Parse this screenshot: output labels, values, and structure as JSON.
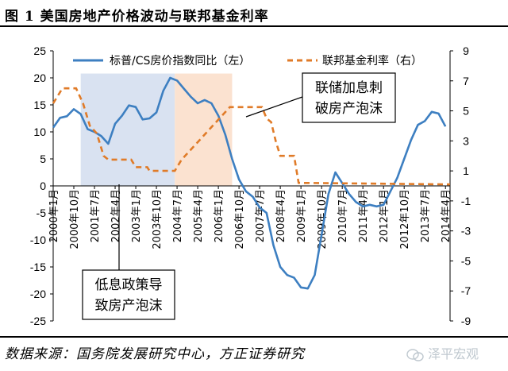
{
  "figure": {
    "title": "图 1    美国房地产价格波动与联邦基金利率",
    "source": "数据来源：国务院发展研究中心，方正证券研究",
    "watermark": "泽平宏观"
  },
  "annotations": {
    "low_rate": "低息政策导\n致房产泡沫",
    "hike": "联储加息刺\n破房产泡沫"
  },
  "colors": {
    "hpi": "#3d7fc1",
    "ffr": "#e07b28",
    "shade_blue": "#d9e2f1",
    "shade_orange": "#fbe2d0"
  },
  "chart_data": {
    "type": "line",
    "title": "",
    "x_ticks": [
      "2000年1月",
      "2000年10月",
      "2001年7月",
      "2002年4月",
      "2003年1月",
      "2003年10月",
      "2004年7月",
      "2005年4月",
      "2006年1月",
      "2006年10月",
      "2007年7月",
      "2008年4月",
      "2009年1月",
      "2009年10月",
      "2010年7月",
      "2011年4月",
      "2012年1月",
      "2012年10月",
      "2013年7月",
      "2014年4月"
    ],
    "y_left": {
      "range": [
        -25,
        25
      ],
      "ticks": [
        25,
        20,
        15,
        10,
        5,
        0,
        -5,
        -10,
        -15,
        -20,
        -25
      ]
    },
    "y_right": {
      "range": [
        -9,
        9
      ],
      "ticks": [
        9,
        7,
        5,
        3,
        1,
        -1,
        -3,
        -5,
        -7,
        -9
      ]
    },
    "shaded_regions": [
      {
        "from": "2001-01",
        "to": "2004-06",
        "color": "blue"
      },
      {
        "from": "2004-06",
        "to": "2006-07",
        "color": "orange"
      }
    ],
    "series": [
      {
        "name": "标普/CS房价指数同比（左）",
        "axis": "left",
        "style": "solid",
        "points": [
          [
            "2000-01",
            10.8
          ],
          [
            "2000-04",
            12.6
          ],
          [
            "2000-07",
            12.9
          ],
          [
            "2000-10",
            14.2
          ],
          [
            "2001-01",
            13.3
          ],
          [
            "2001-04",
            10.5
          ],
          [
            "2001-07",
            10.0
          ],
          [
            "2001-10",
            9.2
          ],
          [
            "2002-01",
            7.8
          ],
          [
            "2002-04",
            11.5
          ],
          [
            "2002-07",
            13.0
          ],
          [
            "2002-10",
            14.9
          ],
          [
            "2003-01",
            14.6
          ],
          [
            "2003-04",
            12.3
          ],
          [
            "2003-07",
            12.5
          ],
          [
            "2003-10",
            13.6
          ],
          [
            "2004-01",
            17.6
          ],
          [
            "2004-04",
            20.0
          ],
          [
            "2004-07",
            19.5
          ],
          [
            "2004-10",
            18.0
          ],
          [
            "2005-01",
            16.5
          ],
          [
            "2005-04",
            15.3
          ],
          [
            "2005-07",
            15.9
          ],
          [
            "2005-10",
            15.3
          ],
          [
            "2006-01",
            13.0
          ],
          [
            "2006-04",
            9.5
          ],
          [
            "2006-07",
            5.0
          ],
          [
            "2006-10",
            1.2
          ],
          [
            "2007-01",
            -1.0
          ],
          [
            "2007-04",
            -2.0
          ],
          [
            "2007-07",
            -4.0
          ],
          [
            "2007-10",
            -5.0
          ],
          [
            "2008-01",
            -11.0
          ],
          [
            "2008-04",
            -15.0
          ],
          [
            "2008-07",
            -16.5
          ],
          [
            "2008-10",
            -17.0
          ],
          [
            "2009-01",
            -18.8
          ],
          [
            "2009-04",
            -19.0
          ],
          [
            "2009-07",
            -16.5
          ],
          [
            "2009-10",
            -9.0
          ],
          [
            "2010-01",
            -1.5
          ],
          [
            "2010-04",
            2.5
          ],
          [
            "2010-07",
            0.5
          ],
          [
            "2010-10",
            -1.5
          ],
          [
            "2011-01",
            -3.0
          ],
          [
            "2011-04",
            -3.8
          ],
          [
            "2011-07",
            -3.5
          ],
          [
            "2011-10",
            -3.8
          ],
          [
            "2012-01",
            -3.5
          ],
          [
            "2012-04",
            -1.0
          ],
          [
            "2012-07",
            1.5
          ],
          [
            "2012-10",
            5.0
          ],
          [
            "2013-01",
            8.5
          ],
          [
            "2013-04",
            11.3
          ],
          [
            "2013-07",
            12.0
          ],
          [
            "2013-10",
            13.7
          ],
          [
            "2014-01",
            13.4
          ],
          [
            "2014-04",
            11.0
          ]
        ]
      },
      {
        "name": "联邦基金利率（右）",
        "axis": "right",
        "style": "dashed",
        "points": [
          [
            "2000-01",
            5.5
          ],
          [
            "2000-05",
            6.5
          ],
          [
            "2000-11",
            6.5
          ],
          [
            "2001-02",
            5.5
          ],
          [
            "2001-05",
            4.0
          ],
          [
            "2001-08",
            3.5
          ],
          [
            "2001-11",
            2.0
          ],
          [
            "2002-01",
            1.75
          ],
          [
            "2002-06",
            1.75
          ],
          [
            "2002-11",
            1.75
          ],
          [
            "2003-01",
            1.25
          ],
          [
            "2003-06",
            1.25
          ],
          [
            "2003-07",
            1.0
          ],
          [
            "2004-06",
            1.0
          ],
          [
            "2004-09",
            1.75
          ],
          [
            "2004-12",
            2.25
          ],
          [
            "2005-03",
            2.75
          ],
          [
            "2005-06",
            3.25
          ],
          [
            "2005-09",
            3.75
          ],
          [
            "2005-12",
            4.25
          ],
          [
            "2006-03",
            4.75
          ],
          [
            "2006-06",
            5.25
          ],
          [
            "2007-08",
            5.25
          ],
          [
            "2007-10",
            4.5
          ],
          [
            "2007-12",
            4.25
          ],
          [
            "2008-02",
            3.0
          ],
          [
            "2008-04",
            2.0
          ],
          [
            "2008-10",
            2.0
          ],
          [
            "2008-12",
            0.2
          ],
          [
            "2014-06",
            0.1
          ]
        ]
      }
    ],
    "legend_position": "top",
    "grid": false
  }
}
